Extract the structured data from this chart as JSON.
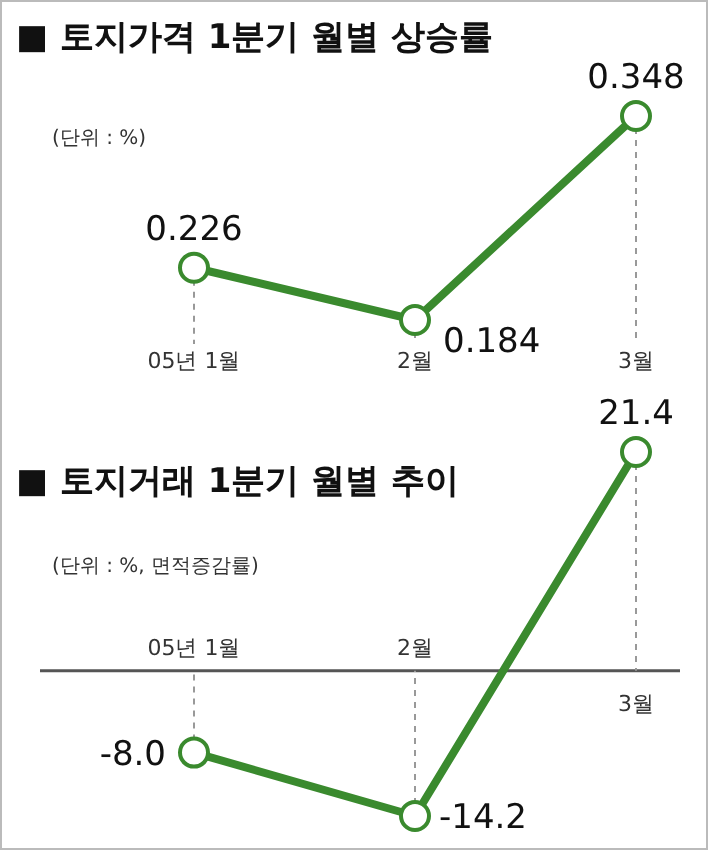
{
  "chart_data": [
    {
      "type": "line",
      "title": "■ 토지가격 1분기 월별 상승률",
      "subtitle": "(단위 : %)",
      "categories": [
        "05년 1월",
        "2월",
        "3월"
      ],
      "series": [
        {
          "color": "#3a8a2e",
          "values": [
            0.226,
            0.184,
            0.348
          ]
        }
      ],
      "data_labels": true,
      "marker": "circle"
    },
    {
      "type": "line",
      "title": "■ 토지거래 1분기 월별 추이",
      "subtitle": "(단위 : %, 면적증감률)",
      "categories": [
        "05년 1월",
        "2월",
        "3월"
      ],
      "series": [
        {
          "color": "#3a8a2e",
          "values": [
            -8.0,
            -14.2,
            21.4
          ],
          "value_labels": [
            "-8.0",
            "-14.2",
            "21.4"
          ]
        }
      ],
      "marker": "circle"
    }
  ]
}
